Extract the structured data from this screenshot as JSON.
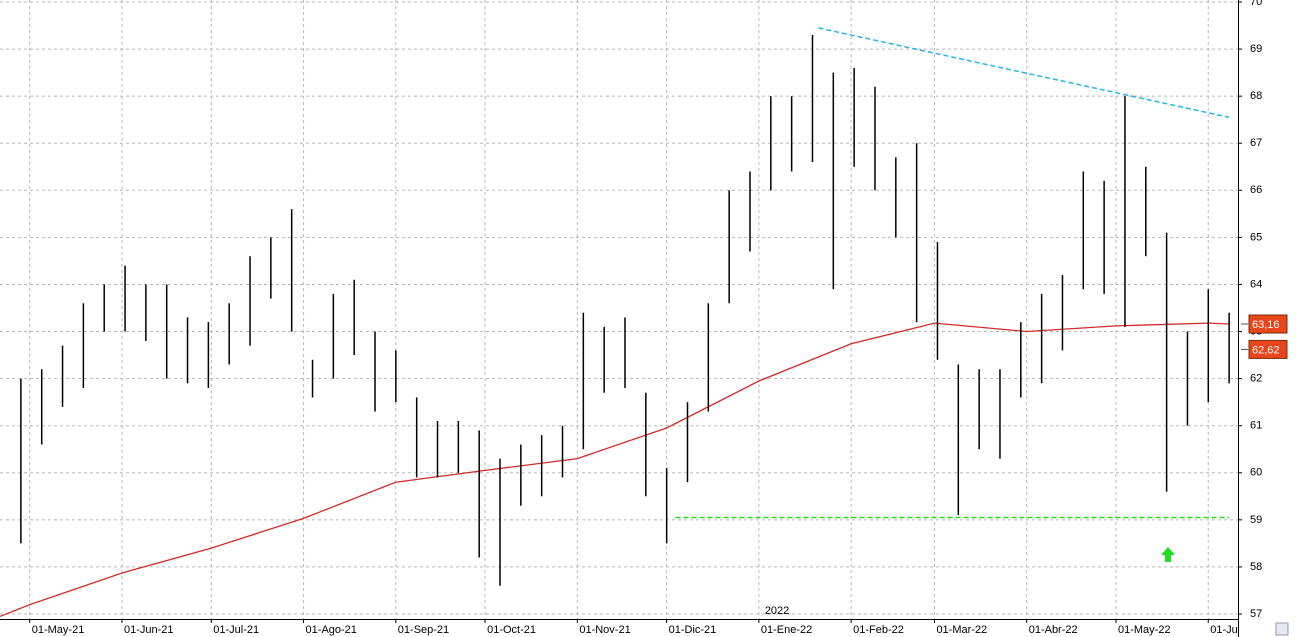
{
  "chart_data": {
    "type": "ohlc",
    "x": [
      "2021-04-26",
      "2021-05-03",
      "2021-05-10",
      "2021-05-17",
      "2021-05-24",
      "2021-05-31",
      "2021-06-07",
      "2021-06-14",
      "2021-06-21",
      "2021-06-28",
      "2021-07-05",
      "2021-07-12",
      "2021-07-19",
      "2021-07-26",
      "2021-08-02",
      "2021-08-09",
      "2021-08-16",
      "2021-08-23",
      "2021-08-30",
      "2021-09-06",
      "2021-09-13",
      "2021-09-20",
      "2021-09-27",
      "2021-10-04",
      "2021-10-11",
      "2021-10-18",
      "2021-10-25",
      "2021-11-01",
      "2021-11-08",
      "2021-11-15",
      "2021-11-22",
      "2021-11-29",
      "2021-12-06",
      "2021-12-13",
      "2021-12-20",
      "2021-12-27",
      "2022-01-03",
      "2022-01-10",
      "2022-01-17",
      "2022-01-24",
      "2022-01-31",
      "2022-02-07",
      "2022-02-14",
      "2022-02-21",
      "2022-02-28",
      "2022-03-07",
      "2022-03-14",
      "2022-03-21",
      "2022-03-28",
      "2022-04-04",
      "2022-04-11",
      "2022-04-18",
      "2022-04-25",
      "2022-05-02",
      "2022-05-09",
      "2022-05-16",
      "2022-05-23",
      "2022-05-30",
      "2022-06-06"
    ],
    "high": [
      62,
      62.2,
      62.7,
      63.6,
      64,
      64.4,
      64,
      64,
      63.3,
      63.2,
      63.6,
      64.6,
      65,
      65.6,
      62.4,
      63.8,
      64.1,
      63,
      62.6,
      61.6,
      61.1,
      61.1,
      60.9,
      60.3,
      60.6,
      60.8,
      61,
      63.4,
      63.1,
      63.3,
      61.7,
      60.1,
      61.5,
      63.6,
      66,
      66.4,
      68,
      68,
      69.3,
      68.5,
      68.6,
      68.2,
      66.7,
      67,
      64.9,
      62.3,
      62.2,
      62.2,
      63.2,
      63.8,
      64.2,
      66.4,
      66.2,
      68,
      66.5,
      65.1,
      63,
      63.9,
      63.4
    ],
    "low": [
      58.5,
      60.6,
      61.4,
      61.8,
      63,
      63,
      62.8,
      62,
      61.9,
      61.8,
      62.3,
      62.7,
      63.7,
      63,
      61.6,
      62,
      62.5,
      61.3,
      61.5,
      59.9,
      59.9,
      60,
      58.2,
      57.6,
      59.3,
      59.5,
      59.9,
      60.5,
      61.7,
      61.8,
      59.5,
      58.5,
      59.8,
      61.3,
      63.6,
      64.7,
      66,
      66.4,
      66.6,
      63.9,
      66.5,
      66,
      65,
      63.2,
      62.4,
      59.1,
      60.5,
      60.3,
      61.6,
      61.9,
      62.6,
      63.9,
      63.8,
      63.1,
      64.6,
      59.6,
      61,
      61.5,
      61.9
    ],
    "color": "#000000",
    "ma": {
      "color": "#d42a2a",
      "x": [
        "2021-04-21",
        "2021-05-01",
        "2021-06-01",
        "2021-07-01",
        "2021-08-01",
        "2021-09-01",
        "2021-10-01",
        "2021-11-01",
        "2021-12-01",
        "2022-01-01",
        "2022-02-01",
        "2022-03-01",
        "2022-04-01",
        "2022-05-01",
        "2022-06-01",
        "2022-06-08"
      ],
      "values": [
        56.95,
        57.2,
        57.87,
        58.4,
        59.03,
        59.8,
        60.05,
        60.3,
        60.95,
        61.95,
        62.74,
        63.18,
        63.0,
        63.12,
        63.18,
        63.16
      ]
    },
    "trendlines": [
      {
        "color": "#22b8e0",
        "x": [
          "2022-01-21",
          "2022-06-08"
        ],
        "values": [
          69.45,
          67.55
        ]
      },
      {
        "color": "#22dd22",
        "x": [
          "2021-12-04",
          "2022-06-08"
        ],
        "values": [
          59.05,
          59.05
        ]
      }
    ],
    "markers": [
      {
        "value": 63.16,
        "label": "63,16"
      },
      {
        "value": 62.62,
        "label": "62,62"
      }
    ],
    "annotation": "2022",
    "annotation_x": "2022-01-03",
    "xlim": [
      "2021-04-21",
      "2022-06-11"
    ],
    "xticks": [
      {
        "value": "2021-05-01",
        "label": "01-May-21"
      },
      {
        "value": "2021-06-01",
        "label": "01-Jun-21"
      },
      {
        "value": "2021-07-01",
        "label": "01-Jul-21"
      },
      {
        "value": "2021-08-01",
        "label": "01-Ago-21"
      },
      {
        "value": "2021-09-01",
        "label": "01-Sep-21"
      },
      {
        "value": "2021-10-01",
        "label": "01-Oct-21"
      },
      {
        "value": "2021-11-01",
        "label": "01-Nov-21"
      },
      {
        "value": "2021-12-01",
        "label": "01-Dic-21"
      },
      {
        "value": "2022-01-01",
        "label": "01-Ene-22"
      },
      {
        "value": "2022-02-01",
        "label": "01-Feb-22"
      },
      {
        "value": "2022-03-01",
        "label": "01-Mar-22"
      },
      {
        "value": "2022-04-01",
        "label": "01-Abr-22"
      },
      {
        "value": "2022-05-01",
        "label": "01-May-22"
      },
      {
        "value": "2022-06-01",
        "label": "01-Ju"
      }
    ],
    "ylim": [
      57,
      70
    ],
    "yticks": [
      57,
      58,
      59,
      60,
      61,
      62,
      63,
      64,
      65,
      66,
      67,
      68,
      69,
      70
    ],
    "grid": true
  }
}
